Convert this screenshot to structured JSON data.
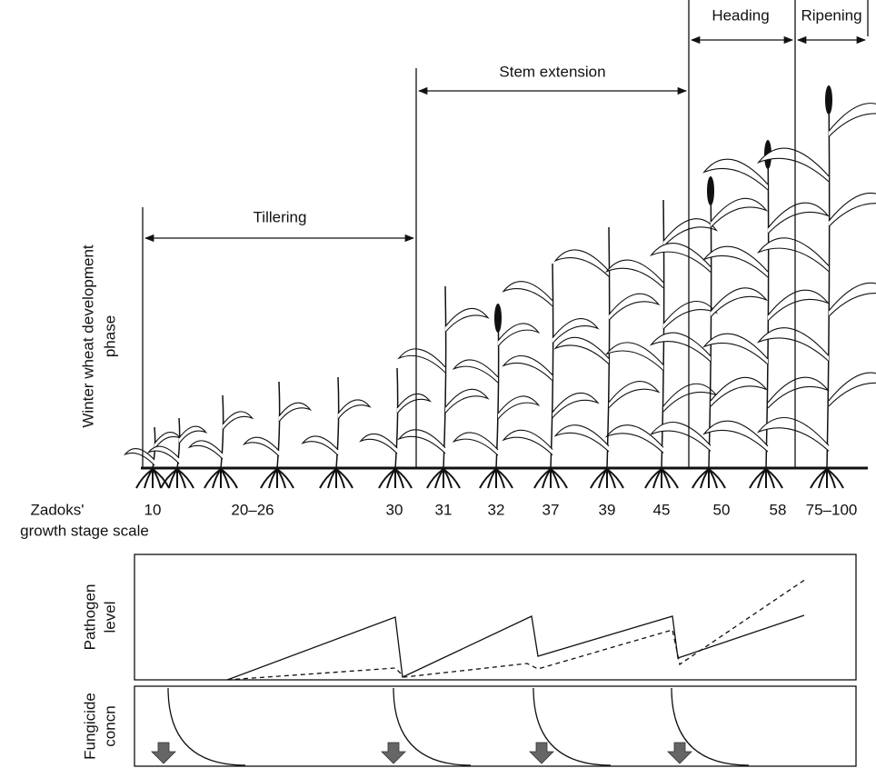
{
  "phases": [
    {
      "label": "Tillering"
    },
    {
      "label": "Stem extension"
    },
    {
      "label": "Heading"
    },
    {
      "label": "Ripening"
    }
  ],
  "y_label": [
    "Winter wheat development",
    "phase"
  ],
  "scale_label": [
    "Zadoks'",
    "growth stage scale"
  ],
  "stages": [
    "10",
    "20–26",
    "30",
    "31",
    "32",
    "37",
    "39",
    "45",
    "50",
    "58",
    "75–100"
  ],
  "panels": [
    {
      "label": [
        "Pathogen",
        "level"
      ]
    },
    {
      "label": [
        "Fungicide",
        "concn"
      ]
    }
  ]
}
